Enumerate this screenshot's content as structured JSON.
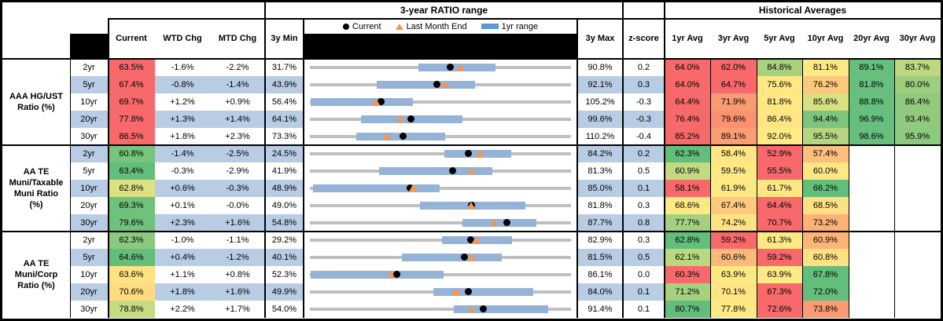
{
  "titles": {
    "range": "3-year RATIO range",
    "historical": "Historical Averages"
  },
  "legend": {
    "current": "Current",
    "last_month_end": "Last Month End",
    "yr1_range": "1yr range"
  },
  "columns": {
    "current": "Current",
    "wtd_chg": "WTD Chg",
    "mtd_chg": "MTD Chg",
    "min_3y": "3y Min",
    "max_3y": "3y Max",
    "z_score": "z-score",
    "avgs": [
      "1yr Avg",
      "3yr Avg",
      "5yr Avg",
      "10yr Avg",
      "20yr Avg",
      "30yr Avg"
    ]
  },
  "colors": {
    "row_alt": "#B8CCE4",
    "bar_1yr": "#95B3D7",
    "legend_bar": "#5B9BD5",
    "track": "#BFBFBF",
    "marker_current": "#000000",
    "marker_last_month": "#F79646",
    "heat_red": "#F8696B",
    "heat_yellow": "#FFE984",
    "heat_green": "#63BE7B"
  },
  "groups": [
    {
      "label": "AAA HG/UST Ratio (%)",
      "label_display": "AAA HG/UST\nRatio (%)",
      "rows": [
        {
          "tenor": "2yr",
          "current": "63.5%",
          "current_bg": "#F8696B",
          "wtd": "-1.6%",
          "mtd": "-2.2%",
          "min": "31.7%",
          "max": "90.8%",
          "z": "0.2",
          "avgs": [
            {
              "v": "64.0%",
              "bg": "#F8696B"
            },
            {
              "v": "62.0%",
              "bg": "#F8696B"
            },
            {
              "v": "84.8%",
              "bg": "#A9D27F"
            },
            {
              "v": "81.1%",
              "bg": "#FFE984"
            },
            {
              "v": "89.1%",
              "bg": "#66BF7C"
            },
            {
              "v": "83.7%",
              "bg": "#BCD980"
            }
          ]
        },
        {
          "tenor": "5yr",
          "current": "67.4%",
          "current_bg": "#F8696B",
          "wtd": "-0.8%",
          "mtd": "-1.4%",
          "min": "43.9%",
          "max": "92.1%",
          "z": "0.3",
          "avgs": [
            {
              "v": "64.0%",
              "bg": "#F8696B"
            },
            {
              "v": "64.7%",
              "bg": "#F8696B"
            },
            {
              "v": "75.6%",
              "bg": "#FFE884"
            },
            {
              "v": "76.2%",
              "bg": "#FDC97D"
            },
            {
              "v": "81.8%",
              "bg": "#66BF7C"
            },
            {
              "v": "80.0%",
              "bg": "#9DCE7E"
            }
          ]
        },
        {
          "tenor": "10yr",
          "current": "69.7%",
          "current_bg": "#F8696B",
          "wtd": "+1.2%",
          "mtd": "+0.9%",
          "min": "56.4%",
          "max": "105.2%",
          "z": "-0.3",
          "avgs": [
            {
              "v": "64.4%",
              "bg": "#F8696B"
            },
            {
              "v": "71.9%",
              "bg": "#FB9B73"
            },
            {
              "v": "81.8%",
              "bg": "#FFE884"
            },
            {
              "v": "85.6%",
              "bg": "#D8E182"
            },
            {
              "v": "88.8%",
              "bg": "#66BF7C"
            },
            {
              "v": "86.4%",
              "bg": "#8FCA7D"
            }
          ]
        },
        {
          "tenor": "20yr",
          "current": "77.8%",
          "current_bg": "#F8696B",
          "wtd": "+1.3%",
          "mtd": "+1.4%",
          "min": "64.1%",
          "max": "99.6%",
          "z": "-0.3",
          "avgs": [
            {
              "v": "76.4%",
              "bg": "#F8696B"
            },
            {
              "v": "79.6%",
              "bg": "#FA9170"
            },
            {
              "v": "86.4%",
              "bg": "#FFE684"
            },
            {
              "v": "94.4%",
              "bg": "#7CC57D"
            },
            {
              "v": "96.9%",
              "bg": "#66BF7C"
            },
            {
              "v": "93.4%",
              "bg": "#90CB7D"
            }
          ]
        },
        {
          "tenor": "30yr",
          "current": "86.5%",
          "current_bg": "#F8696B",
          "wtd": "+1.8%",
          "mtd": "+2.3%",
          "min": "73.3%",
          "max": "110.2%",
          "z": "-0.4",
          "avgs": [
            {
              "v": "85.2%",
              "bg": "#F8696B"
            },
            {
              "v": "89.1%",
              "bg": "#FB9E74"
            },
            {
              "v": "92.0%",
              "bg": "#FFEB84"
            },
            {
              "v": "95.5%",
              "bg": "#B5D680"
            },
            {
              "v": "98.6%",
              "bg": "#66BF7C"
            },
            {
              "v": "95.9%",
              "bg": "#8DCA7D"
            }
          ]
        }
      ]
    },
    {
      "label": "AA TE Muni/Taxable Muni Ratio (%)",
      "label_display": "AA TE\nMuni/Taxable\nMuni Ratio\n(%)",
      "rows": [
        {
          "tenor": "2yr",
          "current": "60.8%",
          "current_bg": "#76C47D",
          "wtd": "-1.4%",
          "mtd": "-2.5%",
          "min": "24.5%",
          "max": "84.2%",
          "z": "0.2",
          "avgs": [
            {
              "v": "62.3%",
              "bg": "#63BE7B"
            },
            {
              "v": "58.4%",
              "bg": "#FFE583"
            },
            {
              "v": "52.9%",
              "bg": "#F8696B"
            },
            {
              "v": "57.4%",
              "bg": "#FDBF7B"
            },
            null,
            null
          ]
        },
        {
          "tenor": "5yr",
          "current": "63.4%",
          "current_bg": "#63BE7B",
          "wtd": "-0.3%",
          "mtd": "-2.9%",
          "min": "41.9%",
          "max": "81.3%",
          "z": "0.5",
          "avgs": [
            {
              "v": "60.9%",
              "bg": "#C2DB81"
            },
            {
              "v": "59.5%",
              "bg": "#FFE984"
            },
            {
              "v": "55.5%",
              "bg": "#F8696B"
            },
            {
              "v": "60.0%",
              "bg": "#FFE884"
            },
            null,
            null
          ]
        },
        {
          "tenor": "10yr",
          "current": "62.8%",
          "current_bg": "#DCE282",
          "wtd": "+0.6%",
          "mtd": "-0.3%",
          "min": "48.9%",
          "max": "85.0%",
          "z": "0.1",
          "avgs": [
            {
              "v": "58.1%",
              "bg": "#F8696B"
            },
            {
              "v": "61.9%",
              "bg": "#FFE984"
            },
            {
              "v": "61.7%",
              "bg": "#FFE884"
            },
            {
              "v": "66.2%",
              "bg": "#63BE7B"
            },
            null,
            null
          ]
        },
        {
          "tenor": "20yr",
          "current": "69.3%",
          "current_bg": "#6FC27C",
          "wtd": "+0.1%",
          "mtd": "-0.0%",
          "min": "49.0%",
          "max": "81.8%",
          "z": "0.3",
          "avgs": [
            {
              "v": "68.6%",
              "bg": "#FFE984"
            },
            {
              "v": "67.4%",
              "bg": "#FDC97D"
            },
            {
              "v": "64.4%",
              "bg": "#F8696B"
            },
            {
              "v": "68.5%",
              "bg": "#FFE083"
            },
            null,
            null
          ]
        },
        {
          "tenor": "30yr",
          "current": "79.6%",
          "current_bg": "#6EC27C",
          "wtd": "+2.3%",
          "mtd": "+1.6%",
          "min": "54.8%",
          "max": "87.7%",
          "z": "0.8",
          "avgs": [
            {
              "v": "77.7%",
              "bg": "#A4D17F"
            },
            {
              "v": "74.2%",
              "bg": "#FFE284"
            },
            {
              "v": "70.7%",
              "bg": "#F8696B"
            },
            {
              "v": "73.2%",
              "bg": "#FCB277"
            },
            null,
            null
          ]
        }
      ]
    },
    {
      "label": "AA TE Muni/Corp Ratio (%)",
      "label_display": "AA TE\nMuni/Corp\nRatio (%)",
      "rows": [
        {
          "tenor": "2yr",
          "current": "62.3%",
          "current_bg": "#8BC97E",
          "wtd": "-1.0%",
          "mtd": "-1.1%",
          "min": "29.2%",
          "max": "82.9%",
          "z": "0.3",
          "avgs": [
            {
              "v": "62.8%",
              "bg": "#63BE7B"
            },
            {
              "v": "59.2%",
              "bg": "#F8696B"
            },
            {
              "v": "61.3%",
              "bg": "#FFE984"
            },
            {
              "v": "60.9%",
              "bg": "#FCB477"
            },
            null,
            null
          ]
        },
        {
          "tenor": "5yr",
          "current": "64.6%",
          "current_bg": "#63BE7B",
          "wtd": "+0.4%",
          "mtd": "-1.2%",
          "min": "40.1%",
          "max": "81.5%",
          "z": "0.5",
          "avgs": [
            {
              "v": "62.1%",
              "bg": "#B9D880"
            },
            {
              "v": "60.6%",
              "bg": "#FCB97A"
            },
            {
              "v": "59.2%",
              "bg": "#F8696B"
            },
            {
              "v": "60.8%",
              "bg": "#FFE083"
            },
            null,
            null
          ]
        },
        {
          "tenor": "10yr",
          "current": "63.6%",
          "current_bg": "#FFE383",
          "wtd": "+1.1%",
          "mtd": "+0.8%",
          "min": "52.3%",
          "max": "86.1%",
          "z": "0.0",
          "avgs": [
            {
              "v": "60.3%",
              "bg": "#F8696B"
            },
            {
              "v": "63.9%",
              "bg": "#FFE984"
            },
            {
              "v": "63.9%",
              "bg": "#FFE984"
            },
            {
              "v": "67.8%",
              "bg": "#63BE7B"
            },
            null,
            null
          ]
        },
        {
          "tenor": "20yr",
          "current": "70.6%",
          "current_bg": "#FFDC80",
          "wtd": "+1.8%",
          "mtd": "+1.6%",
          "min": "49.9%",
          "max": "84.0%",
          "z": "0.1",
          "avgs": [
            {
              "v": "71.2%",
              "bg": "#A6D17F"
            },
            {
              "v": "70.1%",
              "bg": "#FFE684"
            },
            {
              "v": "67.3%",
              "bg": "#F8696B"
            },
            {
              "v": "72.0%",
              "bg": "#63BE7B"
            },
            null,
            null
          ]
        },
        {
          "tenor": "30yr",
          "current": "78.8%",
          "current_bg": "#C6DC81",
          "wtd": "+2.2%",
          "mtd": "+1.7%",
          "min": "54.0%",
          "max": "91.4%",
          "z": "0.1",
          "avgs": [
            {
              "v": "80.7%",
              "bg": "#63BE7B"
            },
            {
              "v": "77.8%",
              "bg": "#FFE984"
            },
            {
              "v": "72.6%",
              "bg": "#F8696B"
            },
            {
              "v": "73.8%",
              "bg": "#FA9B73"
            },
            null,
            null
          ]
        }
      ]
    }
  ],
  "chart_data": {
    "type": "bullet-range",
    "title": "3-year RATIO range",
    "x_unit": "ratio %",
    "legend": [
      "Current",
      "Last Month End",
      "1yr range"
    ],
    "series": [
      {
        "group": "AAA HG/UST Ratio (%)",
        "tenor": "2yr",
        "min3y": 31.7,
        "max3y": 90.8,
        "yr1_low": 56.3,
        "yr1_high": 73.7,
        "current": 63.5,
        "last_month_end": 65.7,
        "z_score": 0.2
      },
      {
        "group": "AAA HG/UST Ratio (%)",
        "tenor": "5yr",
        "min3y": 43.9,
        "max3y": 92.1,
        "yr1_low": 56.2,
        "yr1_high": 74.4,
        "current": 67.4,
        "last_month_end": 68.8,
        "z_score": 0.3
      },
      {
        "group": "AAA HG/UST Ratio (%)",
        "tenor": "10yr",
        "min3y": 56.4,
        "max3y": 105.2,
        "yr1_low": 56.6,
        "yr1_high": 75.6,
        "current": 69.7,
        "last_month_end": 68.8,
        "z_score": -0.3
      },
      {
        "group": "AAA HG/UST Ratio (%)",
        "tenor": "20yr",
        "min3y": 64.1,
        "max3y": 99.6,
        "yr1_low": 71.1,
        "yr1_high": 84.8,
        "current": 77.8,
        "last_month_end": 76.4,
        "z_score": -0.3
      },
      {
        "group": "AAA HG/UST Ratio (%)",
        "tenor": "30yr",
        "min3y": 73.3,
        "max3y": 110.2,
        "yr1_low": 79.9,
        "yr1_high": 92.4,
        "current": 86.5,
        "last_month_end": 84.2,
        "z_score": -0.4
      },
      {
        "group": "AA TE Muni/Taxable Muni Ratio (%)",
        "tenor": "2yr",
        "min3y": 24.5,
        "max3y": 84.2,
        "yr1_low": 55.2,
        "yr1_high": 70.5,
        "current": 60.8,
        "last_month_end": 63.3,
        "z_score": 0.2
      },
      {
        "group": "AA TE Muni/Taxable Muni Ratio (%)",
        "tenor": "5yr",
        "min3y": 41.9,
        "max3y": 81.3,
        "yr1_low": 52.4,
        "yr1_high": 69.4,
        "current": 63.4,
        "last_month_end": 66.3,
        "z_score": 0.5
      },
      {
        "group": "AA TE Muni/Taxable Muni Ratio (%)",
        "tenor": "10yr",
        "min3y": 48.9,
        "max3y": 85.0,
        "yr1_low": 49.3,
        "yr1_high": 66.8,
        "current": 62.8,
        "last_month_end": 63.1,
        "z_score": 0.1
      },
      {
        "group": "AA TE Muni/Taxable Muni Ratio (%)",
        "tenor": "20yr",
        "min3y": 49.0,
        "max3y": 81.8,
        "yr1_low": 62.8,
        "yr1_high": 76.1,
        "current": 69.3,
        "last_month_end": 69.3,
        "z_score": 0.3
      },
      {
        "group": "AA TE Muni/Taxable Muni Ratio (%)",
        "tenor": "30yr",
        "min3y": 54.8,
        "max3y": 87.7,
        "yr1_low": 74.0,
        "yr1_high": 83.3,
        "current": 79.6,
        "last_month_end": 78.0,
        "z_score": 0.8
      },
      {
        "group": "AA TE Muni/Corp Ratio (%)",
        "tenor": "2yr",
        "min3y": 29.2,
        "max3y": 82.9,
        "yr1_low": 56.3,
        "yr1_high": 70.7,
        "current": 62.3,
        "last_month_end": 63.4,
        "z_score": 0.3
      },
      {
        "group": "AA TE Muni/Corp Ratio (%)",
        "tenor": "5yr",
        "min3y": 40.1,
        "max3y": 81.5,
        "yr1_low": 54.7,
        "yr1_high": 70.5,
        "current": 64.6,
        "last_month_end": 65.8,
        "z_score": 0.5
      },
      {
        "group": "AA TE Muni/Corp Ratio (%)",
        "tenor": "10yr",
        "min3y": 52.3,
        "max3y": 86.1,
        "yr1_low": 52.4,
        "yr1_high": 69.6,
        "current": 63.6,
        "last_month_end": 62.8,
        "z_score": 0.0
      },
      {
        "group": "AA TE Muni/Corp Ratio (%)",
        "tenor": "20yr",
        "min3y": 49.9,
        "max3y": 84.0,
        "yr1_low": 66.0,
        "yr1_high": 79.1,
        "current": 70.6,
        "last_month_end": 69.0,
        "z_score": 0.1
      },
      {
        "group": "AA TE Muni/Corp Ratio (%)",
        "tenor": "30yr",
        "min3y": 54.0,
        "max3y": 91.4,
        "yr1_low": 74.6,
        "yr1_high": 88.1,
        "current": 78.8,
        "last_month_end": 77.1,
        "z_score": 0.1
      }
    ]
  }
}
